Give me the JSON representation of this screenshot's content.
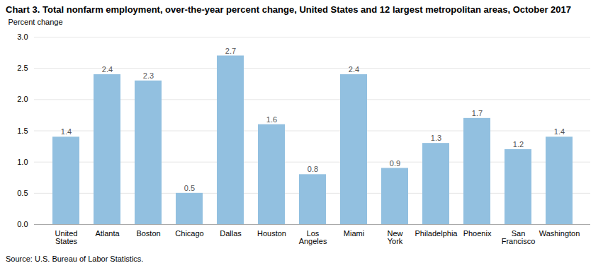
{
  "chart_data": {
    "type": "bar",
    "title": "Chart 3. Total nonfarm employment, over-the-year percent change, United States and 12 largest metropolitan areas, October 2017",
    "ylabel": "Percent change",
    "source": "Source: U.S. Bureau of Labor Statistics.",
    "categories": [
      "United\nStates",
      "Atlanta",
      "Boston",
      "Chicago",
      "Dallas",
      "Houston",
      "Los\nAngeles",
      "Miami",
      "New\nYork",
      "Philadelphia",
      "Phoenix",
      "San\nFrancisco",
      "Washington"
    ],
    "values": [
      1.4,
      2.4,
      2.3,
      0.5,
      2.7,
      1.6,
      0.8,
      2.4,
      0.9,
      1.3,
      1.7,
      1.2,
      1.4
    ],
    "color": "#92c0e0",
    "ylim": [
      0.0,
      3.0
    ],
    "yticks": [
      {
        "value": 0,
        "label": "0.0"
      },
      0.5,
      {
        "value": 1,
        "label": "1.0"
      },
      1.5,
      {
        "value": 2,
        "label": "2.0"
      },
      2.5,
      {
        "value": 3,
        "label": "3.0"
      }
    ],
    "grid": true,
    "data_labels": true
  }
}
